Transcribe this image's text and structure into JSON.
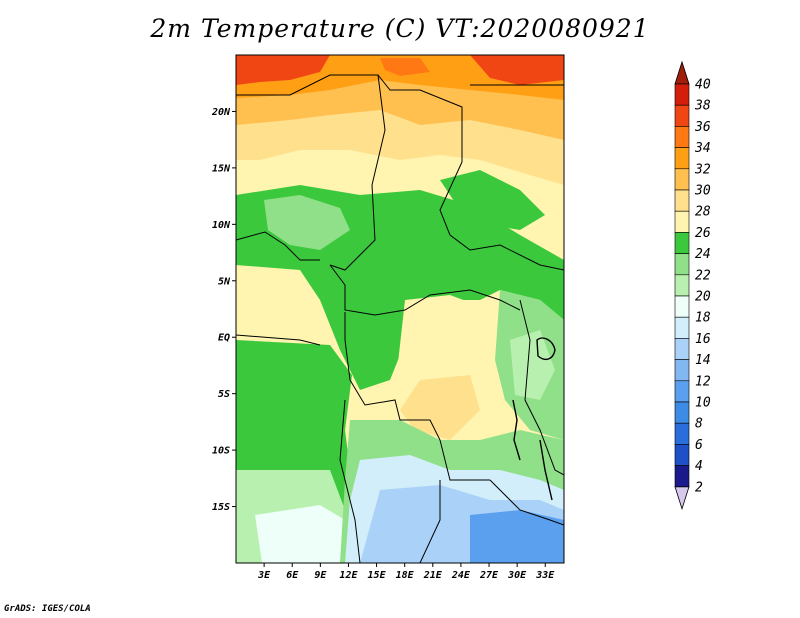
{
  "title": "2m Temperature (C) VT:2020080921",
  "credit": "GrADS: IGES/COLA",
  "map": {
    "lon_range": [
      0,
      35
    ],
    "lat_range": [
      -20,
      25
    ],
    "lat_ticks": [
      "20N",
      "15N",
      "10N",
      "5N",
      "EQ",
      "5S",
      "10S",
      "15S"
    ],
    "lat_values": [
      20,
      15,
      10,
      5,
      0,
      -5,
      -10,
      -15
    ],
    "lon_ticks": [
      "3E",
      "6E",
      "9E",
      "12E",
      "15E",
      "18E",
      "21E",
      "24E",
      "27E",
      "30E",
      "33E"
    ],
    "lon_values": [
      3,
      6,
      9,
      12,
      15,
      18,
      21,
      24,
      27,
      30,
      33
    ]
  },
  "colorbar": {
    "levels": [
      2,
      4,
      6,
      8,
      10,
      12,
      14,
      16,
      18,
      20,
      22,
      24,
      26,
      28,
      30,
      32,
      34,
      36,
      38,
      40
    ],
    "labels": [
      "2",
      "4",
      "6",
      "8",
      "10",
      "12",
      "14",
      "16",
      "18",
      "20",
      "22",
      "24",
      "26",
      "28",
      "30",
      "32",
      "34",
      "36",
      "38",
      "40"
    ],
    "colors": [
      "#d7c8ee",
      "#1a1a8c",
      "#1e50c8",
      "#2a6edc",
      "#3c8ce6",
      "#5aa0ee",
      "#82b8f2",
      "#aad2f8",
      "#d2eefa",
      "#eefef8",
      "#b8f0b0",
      "#90e08a",
      "#3cc83c",
      "#fff4b0",
      "#ffe08c",
      "#ffc050",
      "#ffa014",
      "#ff7814",
      "#f04614",
      "#d21e0a",
      "#a01e0a"
    ]
  }
}
